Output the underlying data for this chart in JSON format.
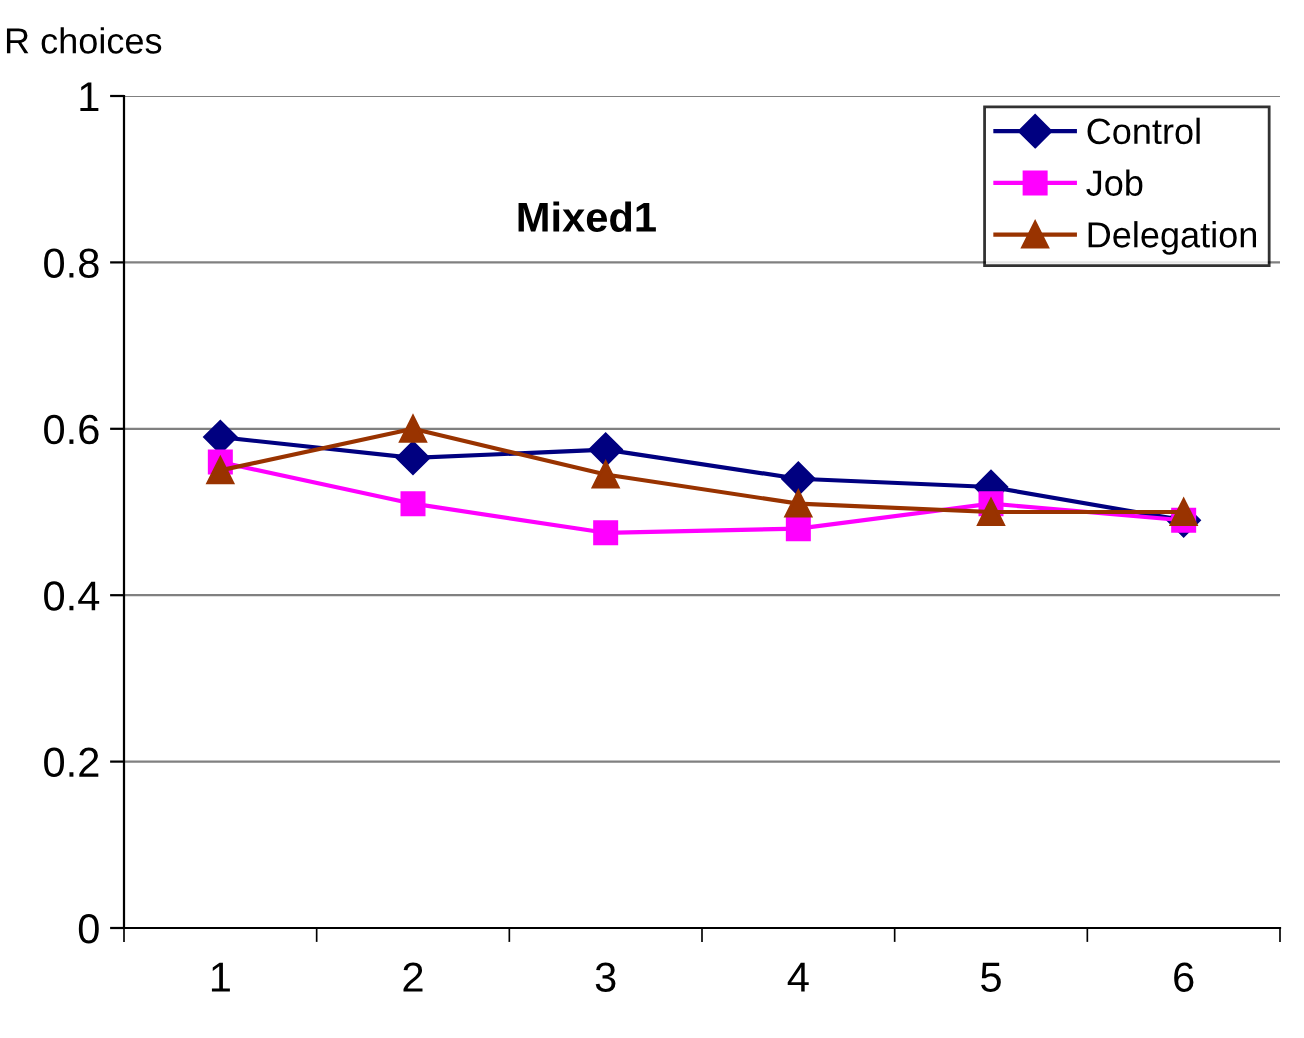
{
  "chart_data": {
    "type": "line",
    "title": "Mixed1",
    "ylabel": "R choices",
    "categories": [
      "1",
      "2",
      "3",
      "4",
      "5",
      "6"
    ],
    "series": [
      {
        "name": "Control",
        "color": "#000080",
        "values": [
          0.59,
          0.565,
          0.575,
          0.54,
          0.53,
          0.49
        ],
        "marker": "diamond"
      },
      {
        "name": "Job",
        "color": "#ff00ff",
        "values": [
          0.56,
          0.51,
          0.475,
          0.48,
          0.51,
          0.49
        ],
        "marker": "square"
      },
      {
        "name": "Delegation",
        "color": "#993300",
        "values": [
          0.55,
          0.6,
          0.545,
          0.51,
          0.5,
          0.5
        ],
        "marker": "triangle"
      }
    ],
    "ylim": [
      0,
      1
    ],
    "yticks": [
      0,
      0.2,
      0.4,
      0.6,
      0.8,
      1
    ],
    "grid": "y",
    "legend": "top right"
  }
}
